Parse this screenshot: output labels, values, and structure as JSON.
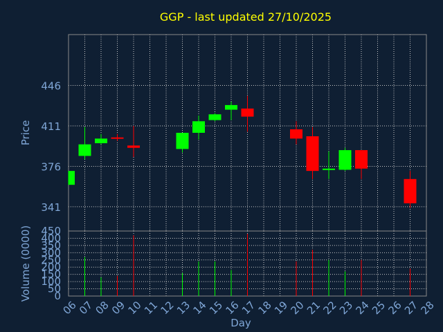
{
  "chart_data": [
    {
      "type": "candlestick",
      "title": "GGP - last updated 27/10/2025",
      "ylabel": "Price",
      "ylim": [
        320,
        490
      ],
      "yticks": [
        341,
        376,
        411,
        446
      ],
      "grid": true,
      "categories": [
        "06",
        "07",
        "08",
        "09",
        "10",
        "11",
        "12",
        "13",
        "14",
        "15",
        "16",
        "17",
        "18",
        "19",
        "20",
        "21",
        "22",
        "23",
        "24",
        "25",
        "26",
        "27",
        "28"
      ],
      "candles": [
        {
          "x": "06",
          "open": 360,
          "high": 372,
          "low": 360,
          "close": 372
        },
        {
          "x": "07",
          "open": 385,
          "high": 410,
          "low": 382,
          "close": 395
        },
        {
          "x": "08",
          "open": 396,
          "high": 404,
          "low": 395,
          "close": 400
        },
        {
          "x": "09",
          "open": 401,
          "high": 404,
          "low": 398,
          "close": 400
        },
        {
          "x": "10",
          "open": 394,
          "high": 411,
          "low": 384,
          "close": 392
        },
        {
          "x": "13",
          "open": 391,
          "high": 405,
          "low": 388,
          "close": 405
        },
        {
          "x": "14",
          "open": 405,
          "high": 420,
          "low": 399,
          "close": 415
        },
        {
          "x": "15",
          "open": 416,
          "high": 422,
          "low": 415,
          "close": 421
        },
        {
          "x": "16",
          "open": 425,
          "high": 432,
          "low": 416,
          "close": 429
        },
        {
          "x": "17",
          "open": 426,
          "high": 437,
          "low": 406,
          "close": 419
        },
        {
          "x": "20",
          "open": 408,
          "high": 415,
          "low": 395,
          "close": 400
        },
        {
          "x": "21",
          "open": 402,
          "high": 410,
          "low": 365,
          "close": 372
        },
        {
          "x": "22",
          "open": 373,
          "high": 389,
          "low": 365,
          "close": 374
        },
        {
          "x": "23",
          "open": 373,
          "high": 392,
          "low": 372,
          "close": 390
        },
        {
          "x": "24",
          "open": 390,
          "high": 390,
          "low": 365,
          "close": 374
        },
        {
          "x": "27",
          "open": 365,
          "high": 372,
          "low": 340,
          "close": 344
        }
      ],
      "up_color": "#00ff00",
      "down_color": "#ff0000"
    },
    {
      "type": "bar",
      "xlabel": "Day",
      "ylabel": "Volume (0000)",
      "ylim": [
        0,
        450
      ],
      "yticks": [
        0,
        50,
        100,
        150,
        200,
        250,
        300,
        350,
        400,
        450
      ],
      "grid": true,
      "categories": [
        "06",
        "07",
        "08",
        "09",
        "10",
        "11",
        "12",
        "13",
        "14",
        "15",
        "16",
        "17",
        "18",
        "19",
        "20",
        "21",
        "22",
        "23",
        "24",
        "25",
        "26",
        "27",
        "28"
      ],
      "values": [
        {
          "x": "07",
          "volume": 270,
          "dir": "up"
        },
        {
          "x": "08",
          "volume": 130,
          "dir": "up"
        },
        {
          "x": "09",
          "volume": 140,
          "dir": "down"
        },
        {
          "x": "10",
          "volume": 420,
          "dir": "down"
        },
        {
          "x": "13",
          "volume": 160,
          "dir": "up"
        },
        {
          "x": "14",
          "volume": 240,
          "dir": "up"
        },
        {
          "x": "15",
          "volume": 240,
          "dir": "up"
        },
        {
          "x": "16",
          "volume": 180,
          "dir": "up"
        },
        {
          "x": "17",
          "volume": 430,
          "dir": "down"
        },
        {
          "x": "20",
          "volume": 240,
          "dir": "down"
        },
        {
          "x": "21",
          "volume": 320,
          "dir": "down"
        },
        {
          "x": "22",
          "volume": 250,
          "dir": "up"
        },
        {
          "x": "23",
          "volume": 170,
          "dir": "up"
        },
        {
          "x": "24",
          "volume": 250,
          "dir": "down"
        },
        {
          "x": "27",
          "volume": 190,
          "dir": "down"
        }
      ]
    }
  ],
  "colors": {
    "background": "#0f1f33",
    "title": "#ffff00",
    "axis_text": "#7fa6d6",
    "frame": "#8a8a8a",
    "grid": "#c8c8c8"
  }
}
